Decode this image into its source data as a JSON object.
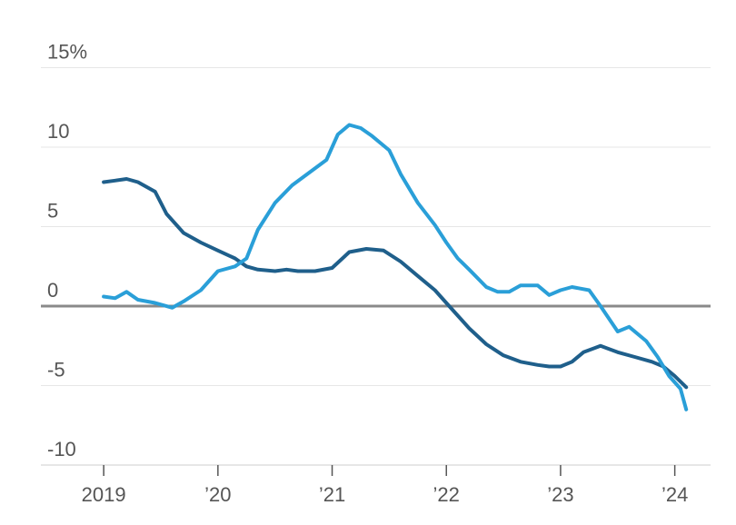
{
  "chart_data": {
    "type": "line",
    "title": "",
    "xlabel": "",
    "ylabel": "",
    "x_tick_labels": [
      "2019",
      "’20",
      "’21",
      "’22",
      "’23",
      "’24"
    ],
    "y_tick_labels": [
      "15%",
      "10",
      "5",
      "0",
      "-5",
      "-10"
    ],
    "y_ticks": [
      15,
      10,
      5,
      0,
      -5,
      -10
    ],
    "x_ticks": [
      2019,
      2020,
      2021,
      2022,
      2023,
      2024
    ],
    "xlim": [
      2018.5,
      2024.15
    ],
    "ylim": [
      -11,
      16
    ],
    "grid": true,
    "colors": {
      "series_1": "#1f5f8b",
      "series_2": "#2a9fd8",
      "zero_line": "#8a8a8a",
      "grid": "#e6e6e6"
    },
    "series": [
      {
        "x": [
          2019.0,
          2019.1,
          2019.2,
          2019.3,
          2019.45,
          2019.55,
          2019.7,
          2019.85,
          2020.0,
          2020.15,
          2020.25,
          2020.35,
          2020.5,
          2020.6,
          2020.7,
          2020.85,
          2021.0,
          2021.15,
          2021.3,
          2021.45,
          2021.6,
          2021.75,
          2021.9,
          2022.0,
          2022.1,
          2022.2,
          2022.35,
          2022.5,
          2022.65,
          2022.8,
          2022.9,
          2023.0,
          2023.1,
          2023.2,
          2023.35,
          2023.5,
          2023.65,
          2023.8,
          2023.9,
          2024.0,
          2024.1
        ],
        "y": [
          7.8,
          7.9,
          8.0,
          7.8,
          7.2,
          5.8,
          4.6,
          4.0,
          3.5,
          3.0,
          2.5,
          2.3,
          2.2,
          2.3,
          2.2,
          2.2,
          2.4,
          3.4,
          3.6,
          3.5,
          2.8,
          1.9,
          1.0,
          0.2,
          -0.6,
          -1.4,
          -2.4,
          -3.1,
          -3.5,
          -3.7,
          -3.8,
          -3.8,
          -3.5,
          -2.9,
          -2.5,
          -2.9,
          -3.2,
          -3.5,
          -3.8,
          -4.4,
          -5.1
        ]
      },
      {
        "x": [
          2019.0,
          2019.1,
          2019.2,
          2019.3,
          2019.45,
          2019.6,
          2019.7,
          2019.85,
          2020.0,
          2020.15,
          2020.25,
          2020.35,
          2020.5,
          2020.65,
          2020.8,
          2020.95,
          2021.05,
          2021.15,
          2021.25,
          2021.35,
          2021.5,
          2021.6,
          2021.75,
          2021.9,
          2022.0,
          2022.1,
          2022.2,
          2022.35,
          2022.45,
          2022.55,
          2022.65,
          2022.8,
          2022.9,
          2023.0,
          2023.1,
          2023.25,
          2023.35,
          2023.5,
          2023.6,
          2023.75,
          2023.85,
          2023.95,
          2024.05,
          2024.1
        ],
        "y": [
          0.6,
          0.5,
          0.9,
          0.4,
          0.2,
          -0.1,
          0.3,
          1.0,
          2.2,
          2.5,
          3.0,
          4.8,
          6.5,
          7.6,
          8.4,
          9.2,
          10.8,
          11.4,
          11.2,
          10.7,
          9.8,
          8.3,
          6.5,
          5.1,
          4.0,
          3.0,
          2.3,
          1.2,
          0.9,
          0.9,
          1.3,
          1.3,
          0.7,
          1.0,
          1.2,
          1.0,
          0.0,
          -1.6,
          -1.3,
          -2.2,
          -3.2,
          -4.4,
          -5.2,
          -6.5
        ]
      }
    ]
  }
}
